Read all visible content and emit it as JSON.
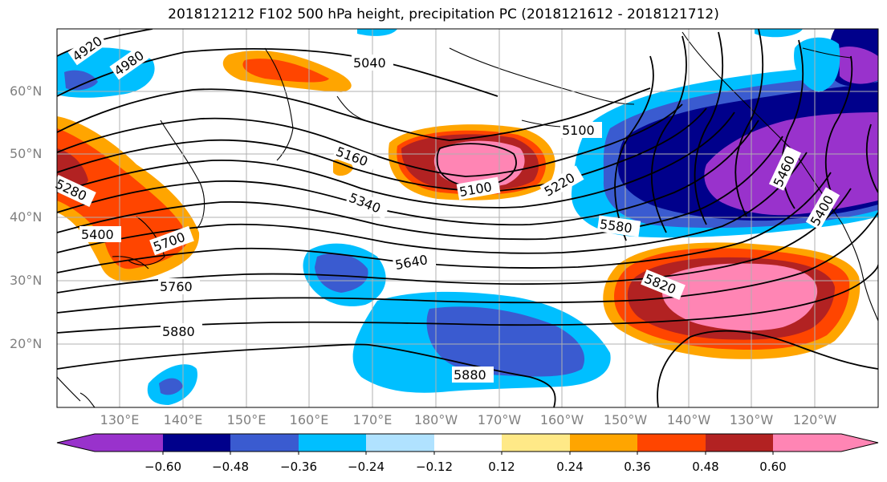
{
  "title": "2018121212 F102 500 hPa height, precipitation PC (2018121612 - 2018121712)",
  "latitude_labels": [
    "60°N",
    "50°N",
    "40°N",
    "30°N",
    "20°N"
  ],
  "longitude_labels": [
    "130°E",
    "140°E",
    "150°E",
    "160°E",
    "170°E",
    "180°W",
    "170°W",
    "160°W",
    "150°W",
    "140°W",
    "130°W",
    "120°W"
  ],
  "contour_labels": [
    "4920",
    "4980",
    "5040",
    "5100",
    "5160",
    "5100",
    "5220",
    "5280",
    "5340",
    "5400",
    "5460",
    "5580",
    "5640",
    "5700",
    "5760",
    "5820",
    "5880",
    "5880",
    "5400"
  ],
  "colorbar": {
    "colors": [
      "#9932cc",
      "#00008b",
      "#3a5bd0",
      "#00bfff",
      "#b0e2ff",
      "#ffffff",
      "#ffe987",
      "#ffa500",
      "#ff4500",
      "#b22222",
      "#ff85b4"
    ],
    "tick_labels": [
      "−0.60",
      "−0.48",
      "−0.36",
      "−0.24",
      "−0.12",
      "0.12",
      "0.24",
      "0.36",
      "0.48",
      "0.60"
    ]
  }
}
